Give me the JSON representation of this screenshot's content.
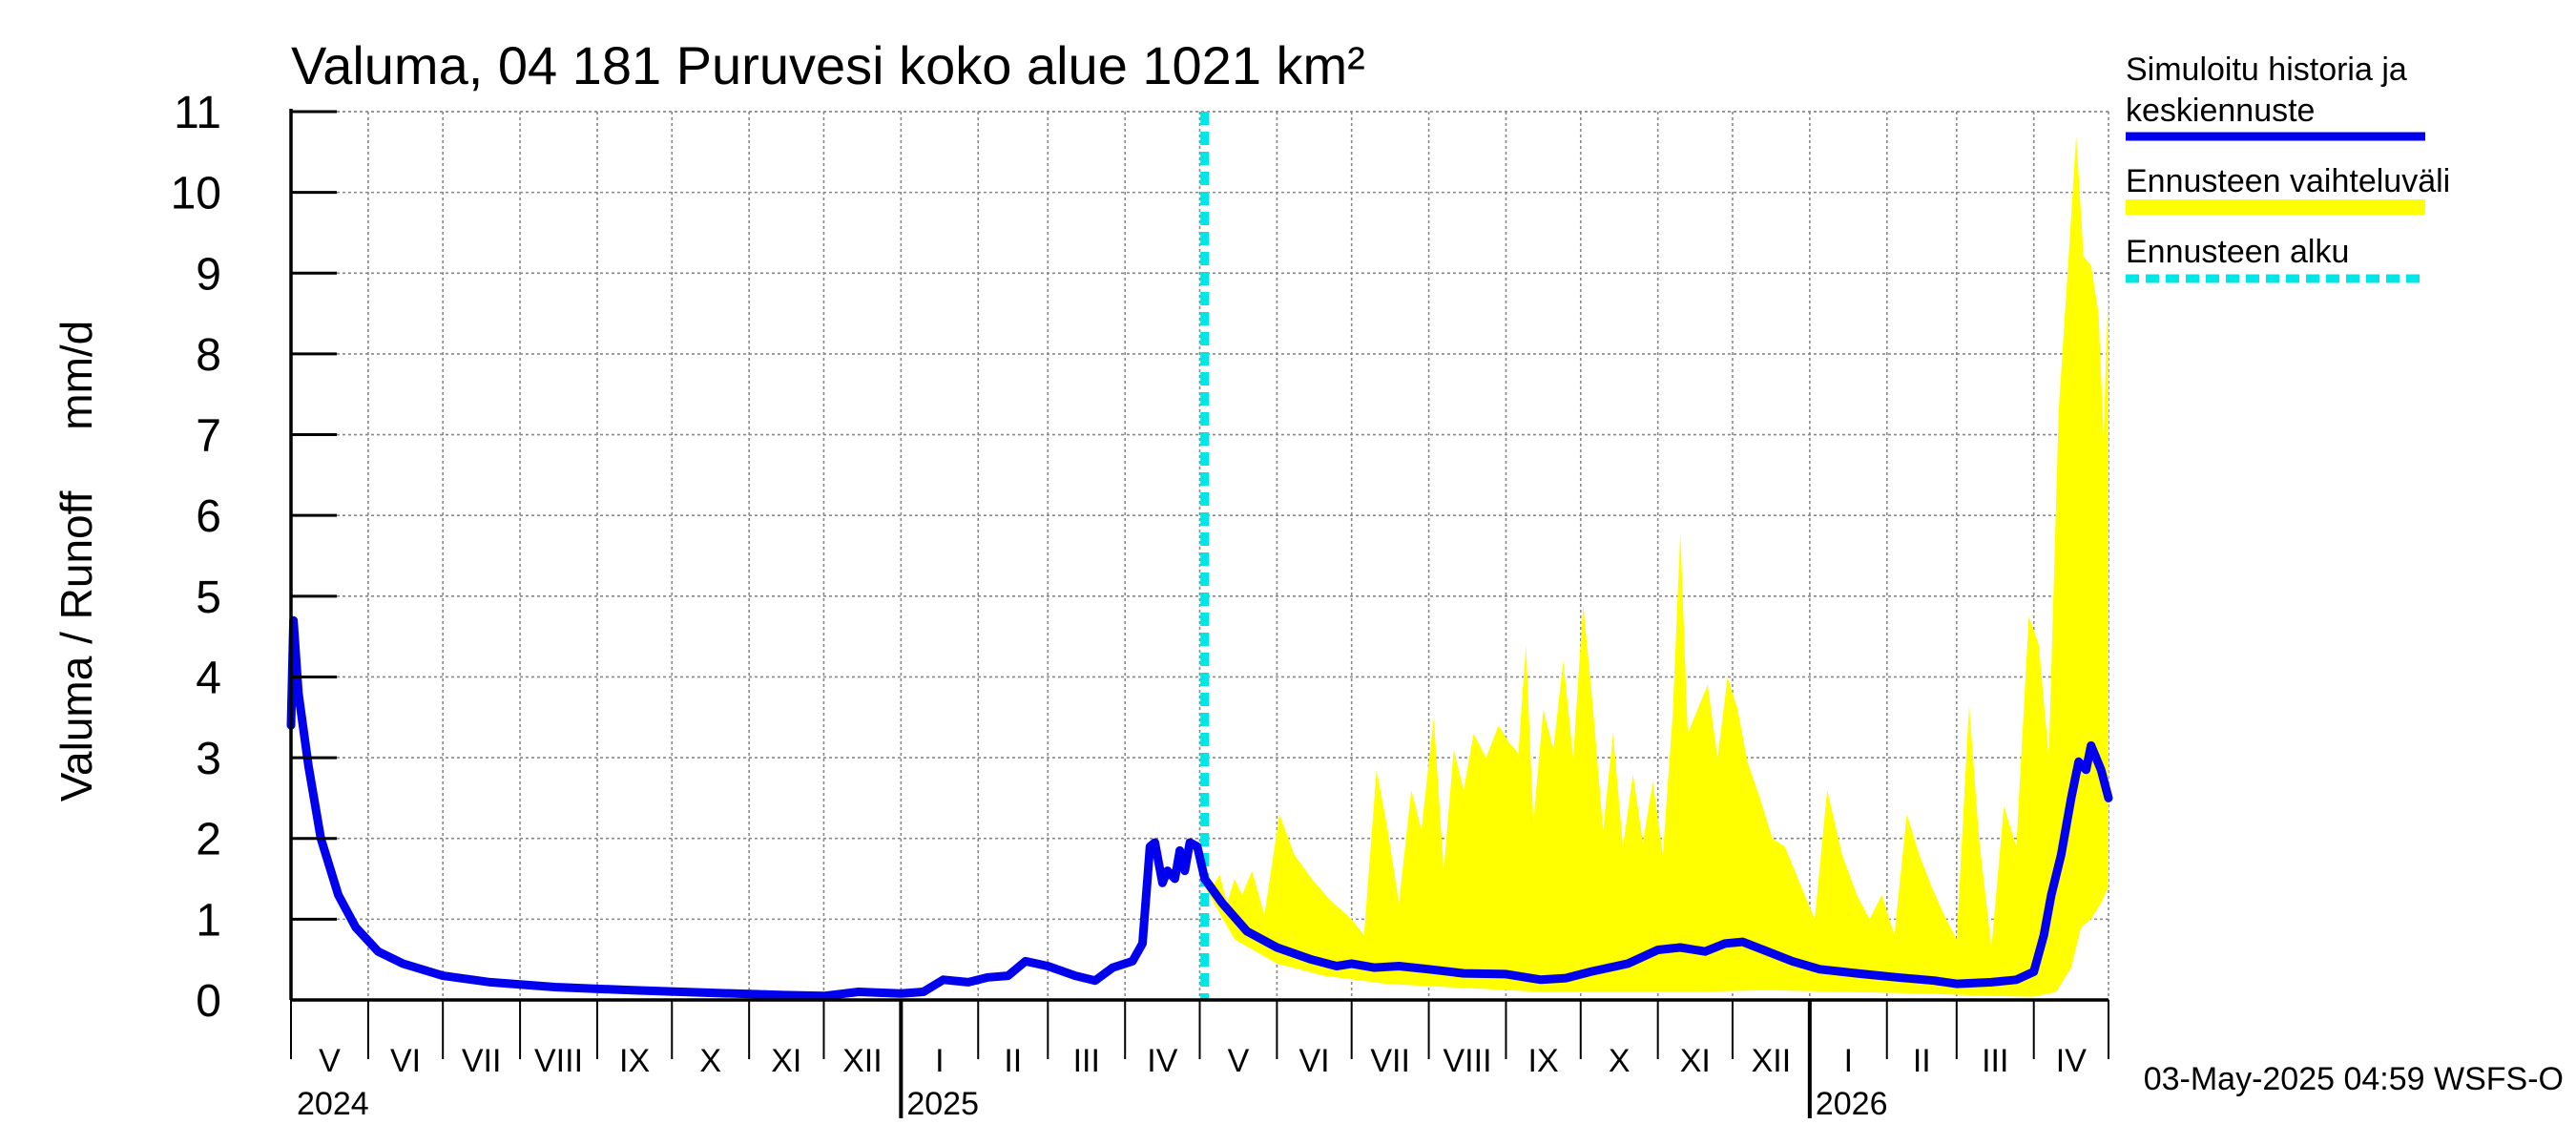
{
  "chart_data": {
    "type": "area",
    "title": "Valuma, 04 181 Puruvesi koko alue 1021 km²",
    "ylabel": "Valuma / Runoff     mm/d",
    "ylim": [
      0,
      11
    ],
    "yticks": [
      0,
      1,
      2,
      3,
      4,
      5,
      6,
      7,
      8,
      9,
      10,
      11
    ],
    "grid": true,
    "legend_position": "right",
    "timestamp": "03-May-2025 04:59 WSFS-O",
    "x_range": [
      "2024-05-01",
      "2026-05-01"
    ],
    "forecast_start": "2025-05-03",
    "month_labels": [
      "V",
      "VI",
      "VII",
      "VIII",
      "IX",
      "X",
      "XI",
      "XII",
      "I",
      "II",
      "III",
      "IV",
      "V",
      "VI",
      "VII",
      "VIII",
      "IX",
      "X",
      "XI",
      "XII",
      "I",
      "II",
      "III",
      "IV"
    ],
    "year_labels": [
      {
        "label": "2024",
        "date": "2024-05-01"
      },
      {
        "label": "2025",
        "date": "2025-01-01"
      },
      {
        "label": "2026",
        "date": "2026-01-01"
      }
    ],
    "legend": [
      {
        "label": "Simuloitu historia ja",
        "label2": "keskiennuste",
        "color": "#0000ee",
        "style": "solid"
      },
      {
        "label": "Ennusteen vaihteluväli",
        "color": "#ffff00",
        "style": "band"
      },
      {
        "label": "Ennusteen alku",
        "color": "#00e5e5",
        "style": "dashed"
      }
    ],
    "series": [
      {
        "name": "Simuloitu historia ja keskiennuste",
        "color": "#0000ee",
        "points": [
          [
            "2024-05-01",
            3.4
          ],
          [
            "2024-05-02",
            4.7
          ],
          [
            "2024-05-04",
            3.8
          ],
          [
            "2024-05-08",
            2.9
          ],
          [
            "2024-05-13",
            2.0
          ],
          [
            "2024-05-20",
            1.3
          ],
          [
            "2024-05-27",
            0.9
          ],
          [
            "2024-06-05",
            0.6
          ],
          [
            "2024-06-15",
            0.45
          ],
          [
            "2024-07-01",
            0.3
          ],
          [
            "2024-07-20",
            0.22
          ],
          [
            "2024-08-15",
            0.16
          ],
          [
            "2024-09-15",
            0.12
          ],
          [
            "2024-10-15",
            0.09
          ],
          [
            "2024-11-15",
            0.06
          ],
          [
            "2024-12-01",
            0.05
          ],
          [
            "2024-12-15",
            0.1
          ],
          [
            "2025-01-01",
            0.08
          ],
          [
            "2025-01-10",
            0.1
          ],
          [
            "2025-01-18",
            0.25
          ],
          [
            "2025-01-28",
            0.22
          ],
          [
            "2025-02-05",
            0.28
          ],
          [
            "2025-02-13",
            0.3
          ],
          [
            "2025-02-20",
            0.48
          ],
          [
            "2025-03-01",
            0.42
          ],
          [
            "2025-03-12",
            0.3
          ],
          [
            "2025-03-20",
            0.24
          ],
          [
            "2025-03-27",
            0.4
          ],
          [
            "2025-04-04",
            0.48
          ],
          [
            "2025-04-08",
            0.7
          ],
          [
            "2025-04-11",
            1.9
          ],
          [
            "2025-04-13",
            1.95
          ],
          [
            "2025-04-16",
            1.45
          ],
          [
            "2025-04-18",
            1.6
          ],
          [
            "2025-04-21",
            1.5
          ],
          [
            "2025-04-23",
            1.85
          ],
          [
            "2025-04-25",
            1.6
          ],
          [
            "2025-04-27",
            1.95
          ],
          [
            "2025-04-30",
            1.9
          ],
          [
            "2025-05-03",
            1.5
          ],
          [
            "2025-05-10",
            1.2
          ],
          [
            "2025-05-20",
            0.85
          ],
          [
            "2025-06-01",
            0.65
          ],
          [
            "2025-06-15",
            0.5
          ],
          [
            "2025-06-25",
            0.42
          ],
          [
            "2025-07-01",
            0.45
          ],
          [
            "2025-07-10",
            0.4
          ],
          [
            "2025-07-20",
            0.42
          ],
          [
            "2025-08-01",
            0.38
          ],
          [
            "2025-08-15",
            0.33
          ],
          [
            "2025-09-01",
            0.32
          ],
          [
            "2025-09-15",
            0.25
          ],
          [
            "2025-09-25",
            0.27
          ],
          [
            "2025-10-05",
            0.35
          ],
          [
            "2025-10-20",
            0.45
          ],
          [
            "2025-11-01",
            0.62
          ],
          [
            "2025-11-10",
            0.65
          ],
          [
            "2025-11-20",
            0.6
          ],
          [
            "2025-11-28",
            0.7
          ],
          [
            "2025-12-05",
            0.72
          ],
          [
            "2025-12-15",
            0.6
          ],
          [
            "2025-12-25",
            0.48
          ],
          [
            "2026-01-05",
            0.38
          ],
          [
            "2026-01-20",
            0.33
          ],
          [
            "2026-02-05",
            0.28
          ],
          [
            "2026-02-20",
            0.24
          ],
          [
            "2026-03-01",
            0.2
          ],
          [
            "2026-03-15",
            0.22
          ],
          [
            "2026-03-25",
            0.25
          ],
          [
            "2026-04-01",
            0.35
          ],
          [
            "2026-04-05",
            0.8
          ],
          [
            "2026-04-08",
            1.3
          ],
          [
            "2026-04-12",
            1.8
          ],
          [
            "2026-04-16",
            2.5
          ],
          [
            "2026-04-19",
            2.95
          ],
          [
            "2026-04-22",
            2.85
          ],
          [
            "2026-04-24",
            3.15
          ],
          [
            "2026-04-26",
            3.0
          ],
          [
            "2026-04-28",
            2.85
          ],
          [
            "2026-05-01",
            2.5
          ]
        ]
      }
    ],
    "band": {
      "name": "Ennusteen vaihteluväli",
      "color": "#ffff00",
      "upper": [
        [
          "2025-05-03",
          1.5
        ],
        [
          "2025-05-06",
          1.4
        ],
        [
          "2025-05-09",
          1.55
        ],
        [
          "2025-05-12",
          1.2
        ],
        [
          "2025-05-15",
          1.5
        ],
        [
          "2025-05-18",
          1.3
        ],
        [
          "2025-05-22",
          1.6
        ],
        [
          "2025-05-27",
          1.05
        ],
        [
          "2025-06-02",
          2.3
        ],
        [
          "2025-06-08",
          1.8
        ],
        [
          "2025-06-15",
          1.5
        ],
        [
          "2025-06-22",
          1.25
        ],
        [
          "2025-07-01",
          1.0
        ],
        [
          "2025-07-06",
          0.8
        ],
        [
          "2025-07-11",
          2.85
        ],
        [
          "2025-07-15",
          2.2
        ],
        [
          "2025-07-20",
          1.2
        ],
        [
          "2025-07-25",
          2.6
        ],
        [
          "2025-07-29",
          2.1
        ],
        [
          "2025-08-03",
          3.5
        ],
        [
          "2025-08-07",
          1.6
        ],
        [
          "2025-08-11",
          3.1
        ],
        [
          "2025-08-15",
          2.6
        ],
        [
          "2025-08-19",
          3.3
        ],
        [
          "2025-08-24",
          3.0
        ],
        [
          "2025-08-29",
          3.4
        ],
        [
          "2025-09-02",
          3.2
        ],
        [
          "2025-09-06",
          3.05
        ],
        [
          "2025-09-09",
          4.4
        ],
        [
          "2025-09-12",
          2.2
        ],
        [
          "2025-09-16",
          3.6
        ],
        [
          "2025-09-20",
          3.1
        ],
        [
          "2025-09-24",
          4.2
        ],
        [
          "2025-09-28",
          3.0
        ],
        [
          "2025-10-02",
          4.9
        ],
        [
          "2025-10-06",
          3.6
        ],
        [
          "2025-10-10",
          2.1
        ],
        [
          "2025-10-14",
          3.3
        ],
        [
          "2025-10-18",
          1.9
        ],
        [
          "2025-10-22",
          2.8
        ],
        [
          "2025-10-26",
          1.95
        ],
        [
          "2025-10-30",
          2.7
        ],
        [
          "2025-11-03",
          1.8
        ],
        [
          "2025-11-07",
          3.55
        ],
        [
          "2025-11-10",
          5.8
        ],
        [
          "2025-11-13",
          3.3
        ],
        [
          "2025-11-17",
          3.6
        ],
        [
          "2025-11-21",
          3.9
        ],
        [
          "2025-11-25",
          3.0
        ],
        [
          "2025-11-29",
          4.0
        ],
        [
          "2025-12-03",
          3.6
        ],
        [
          "2025-12-07",
          2.95
        ],
        [
          "2025-12-12",
          2.5
        ],
        [
          "2025-12-17",
          2.0
        ],
        [
          "2025-12-22",
          1.9
        ],
        [
          "2025-12-28",
          1.45
        ],
        [
          "2026-01-03",
          1.0
        ],
        [
          "2026-01-08",
          2.6
        ],
        [
          "2026-01-14",
          1.8
        ],
        [
          "2026-01-20",
          1.3
        ],
        [
          "2026-01-25",
          1.0
        ],
        [
          "2026-01-30",
          1.3
        ],
        [
          "2026-02-04",
          0.8
        ],
        [
          "2026-02-09",
          2.3
        ],
        [
          "2026-02-14",
          1.8
        ],
        [
          "2026-02-19",
          1.4
        ],
        [
          "2026-02-24",
          1.05
        ],
        [
          "2026-03-01",
          0.75
        ],
        [
          "2026-03-06",
          3.65
        ],
        [
          "2026-03-10",
          2.0
        ],
        [
          "2026-03-15",
          0.65
        ],
        [
          "2026-03-20",
          2.4
        ],
        [
          "2026-03-25",
          1.9
        ],
        [
          "2026-03-30",
          4.75
        ],
        [
          "2026-04-03",
          4.4
        ],
        [
          "2026-04-07",
          3.0
        ],
        [
          "2026-04-11",
          7.3
        ],
        [
          "2026-04-15",
          9.2
        ],
        [
          "2026-04-18",
          10.7
        ],
        [
          "2026-04-21",
          9.2
        ],
        [
          "2026-04-24",
          9.1
        ],
        [
          "2026-04-27",
          8.5
        ],
        [
          "2026-04-29",
          7.0
        ],
        [
          "2026-05-01",
          8.9
        ]
      ],
      "lower": [
        [
          "2025-05-03",
          1.4
        ],
        [
          "2025-05-15",
          0.75
        ],
        [
          "2025-06-01",
          0.45
        ],
        [
          "2025-06-20",
          0.3
        ],
        [
          "2025-07-15",
          0.2
        ],
        [
          "2025-08-15",
          0.15
        ],
        [
          "2025-09-15",
          0.1
        ],
        [
          "2025-10-15",
          0.1
        ],
        [
          "2025-11-15",
          0.1
        ],
        [
          "2025-12-15",
          0.12
        ],
        [
          "2026-01-15",
          0.1
        ],
        [
          "2026-02-15",
          0.08
        ],
        [
          "2026-03-15",
          0.05
        ],
        [
          "2026-04-01",
          0.04
        ],
        [
          "2026-04-10",
          0.1
        ],
        [
          "2026-04-16",
          0.4
        ],
        [
          "2026-04-20",
          0.9
        ],
        [
          "2026-04-24",
          1.0
        ],
        [
          "2026-04-28",
          1.2
        ],
        [
          "2026-05-01",
          1.4
        ]
      ]
    }
  }
}
